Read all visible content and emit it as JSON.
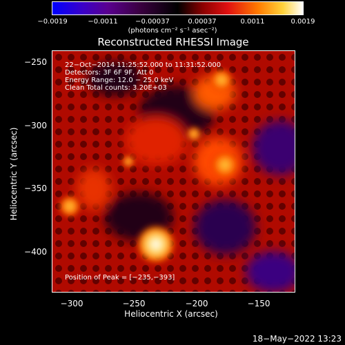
{
  "colorbar": {
    "ticks": [
      "−0.0019",
      "−0.0011",
      "−0.00037",
      "0.00037",
      "0.0011",
      "0.0019"
    ],
    "units": "(photons cm⁻² s⁻¹ asec⁻²)"
  },
  "title": "Reconstructed RHESSI Image",
  "info": {
    "line1": "22−Oct−2014 11:25:52.000 to 11:31:52.000",
    "line2": "Detectors: 3F 6F 9F, Att 0",
    "line3": "Energy Range: 12.0 − 25.0 keV",
    "line4": "Clean     Total counts: 3.20E+03",
    "peak": "Position of Peak = [−235,−393]"
  },
  "axes": {
    "xlabel": "Heliocentric X (arcsec)",
    "ylabel": "Heliocentric Y (arcsec)",
    "xticks": [
      "−300",
      "−250",
      "−200",
      "−150"
    ],
    "yticks": [
      "−250",
      "−300",
      "−350",
      "−400"
    ]
  },
  "timestamp": "18−May−2022 13:23"
}
